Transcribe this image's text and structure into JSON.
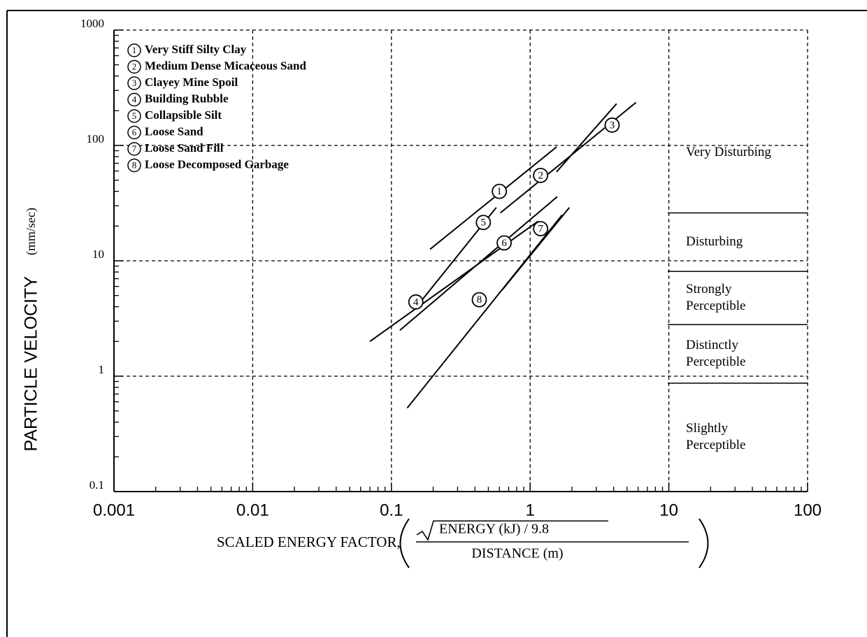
{
  "chart_data": {
    "type": "line",
    "log_x": true,
    "log_y": true,
    "grid": true,
    "xlabel": "SCALED ENERGY FACTOR,",
    "xlabel_numerator": "ENERGY (kJ) / 9.8",
    "xlabel_denominator": "DISTANCE (m)",
    "ylabel": "PARTICLE VELOCITY",
    "ylabel_units": "(mm/sec)",
    "xlim": [
      0.001,
      100
    ],
    "xticks": [
      0.001,
      0.01,
      0.1,
      1,
      10,
      100
    ],
    "ylim": [
      0.1,
      1000
    ],
    "yticks": [
      0.1,
      1,
      10,
      100,
      1000
    ],
    "color": "#000000",
    "series": [
      {
        "name": "Very Stiff Silty Clay",
        "marker": "1",
        "x": [
          0.19,
          1.55
        ],
        "values": [
          12.6,
          97
        ],
        "marker_x": 0.6,
        "marker_y": 40
      },
      {
        "name": "Medium Dense Micaceous Sand",
        "marker": "2",
        "x": [
          0.61,
          5.8
        ],
        "values": [
          26,
          236
        ],
        "marker_x": 1.19,
        "marker_y": 55
      },
      {
        "name": "Clayey Mine Spoil",
        "marker": "3",
        "x": [
          1.55,
          4.2
        ],
        "values": [
          59,
          230
        ],
        "marker_x": 3.9,
        "marker_y": 150
      },
      {
        "name": "Building Rubble",
        "marker": "4",
        "x": [
          0.07,
          1.14
        ],
        "values": [
          2.0,
          22
        ],
        "marker_x": 0.15,
        "marker_y": 4.4
      },
      {
        "name": "Collapsible Silt",
        "marker": "5",
        "x": [
          0.157,
          0.57
        ],
        "values": [
          4.2,
          29
        ],
        "marker_x": 0.46,
        "marker_y": 21.5
      },
      {
        "name": "Loose Sand",
        "marker": "6",
        "x": [
          0.115,
          1.57
        ],
        "values": [
          2.5,
          36
        ],
        "marker_x": 0.65,
        "marker_y": 14.3
      },
      {
        "name": "Loose Sand Fill",
        "marker": "7",
        "x": [
          0.63,
          1.92
        ],
        "values": [
          5.6,
          29
        ],
        "marker_x": 1.19,
        "marker_y": 19
      },
      {
        "name": "Loose Decomposed Garbage",
        "marker": "8",
        "x": [
          0.13,
          1.7
        ],
        "values": [
          0.53,
          25
        ],
        "marker_x": 0.43,
        "marker_y": 4.6
      }
    ],
    "zones": [
      {
        "label": "Very Disturbing",
        "from": 26,
        "to": 1000
      },
      {
        "label": "Disturbing",
        "from": 8.1,
        "to": 26
      },
      {
        "label": "Strongly Perceptible",
        "from": 2.8,
        "to": 8.1
      },
      {
        "label": "Distinctly Perceptible",
        "from": 0.87,
        "to": 2.8
      },
      {
        "label": "Slightly Perceptible",
        "from": 0.1,
        "to": 0.87
      }
    ]
  }
}
